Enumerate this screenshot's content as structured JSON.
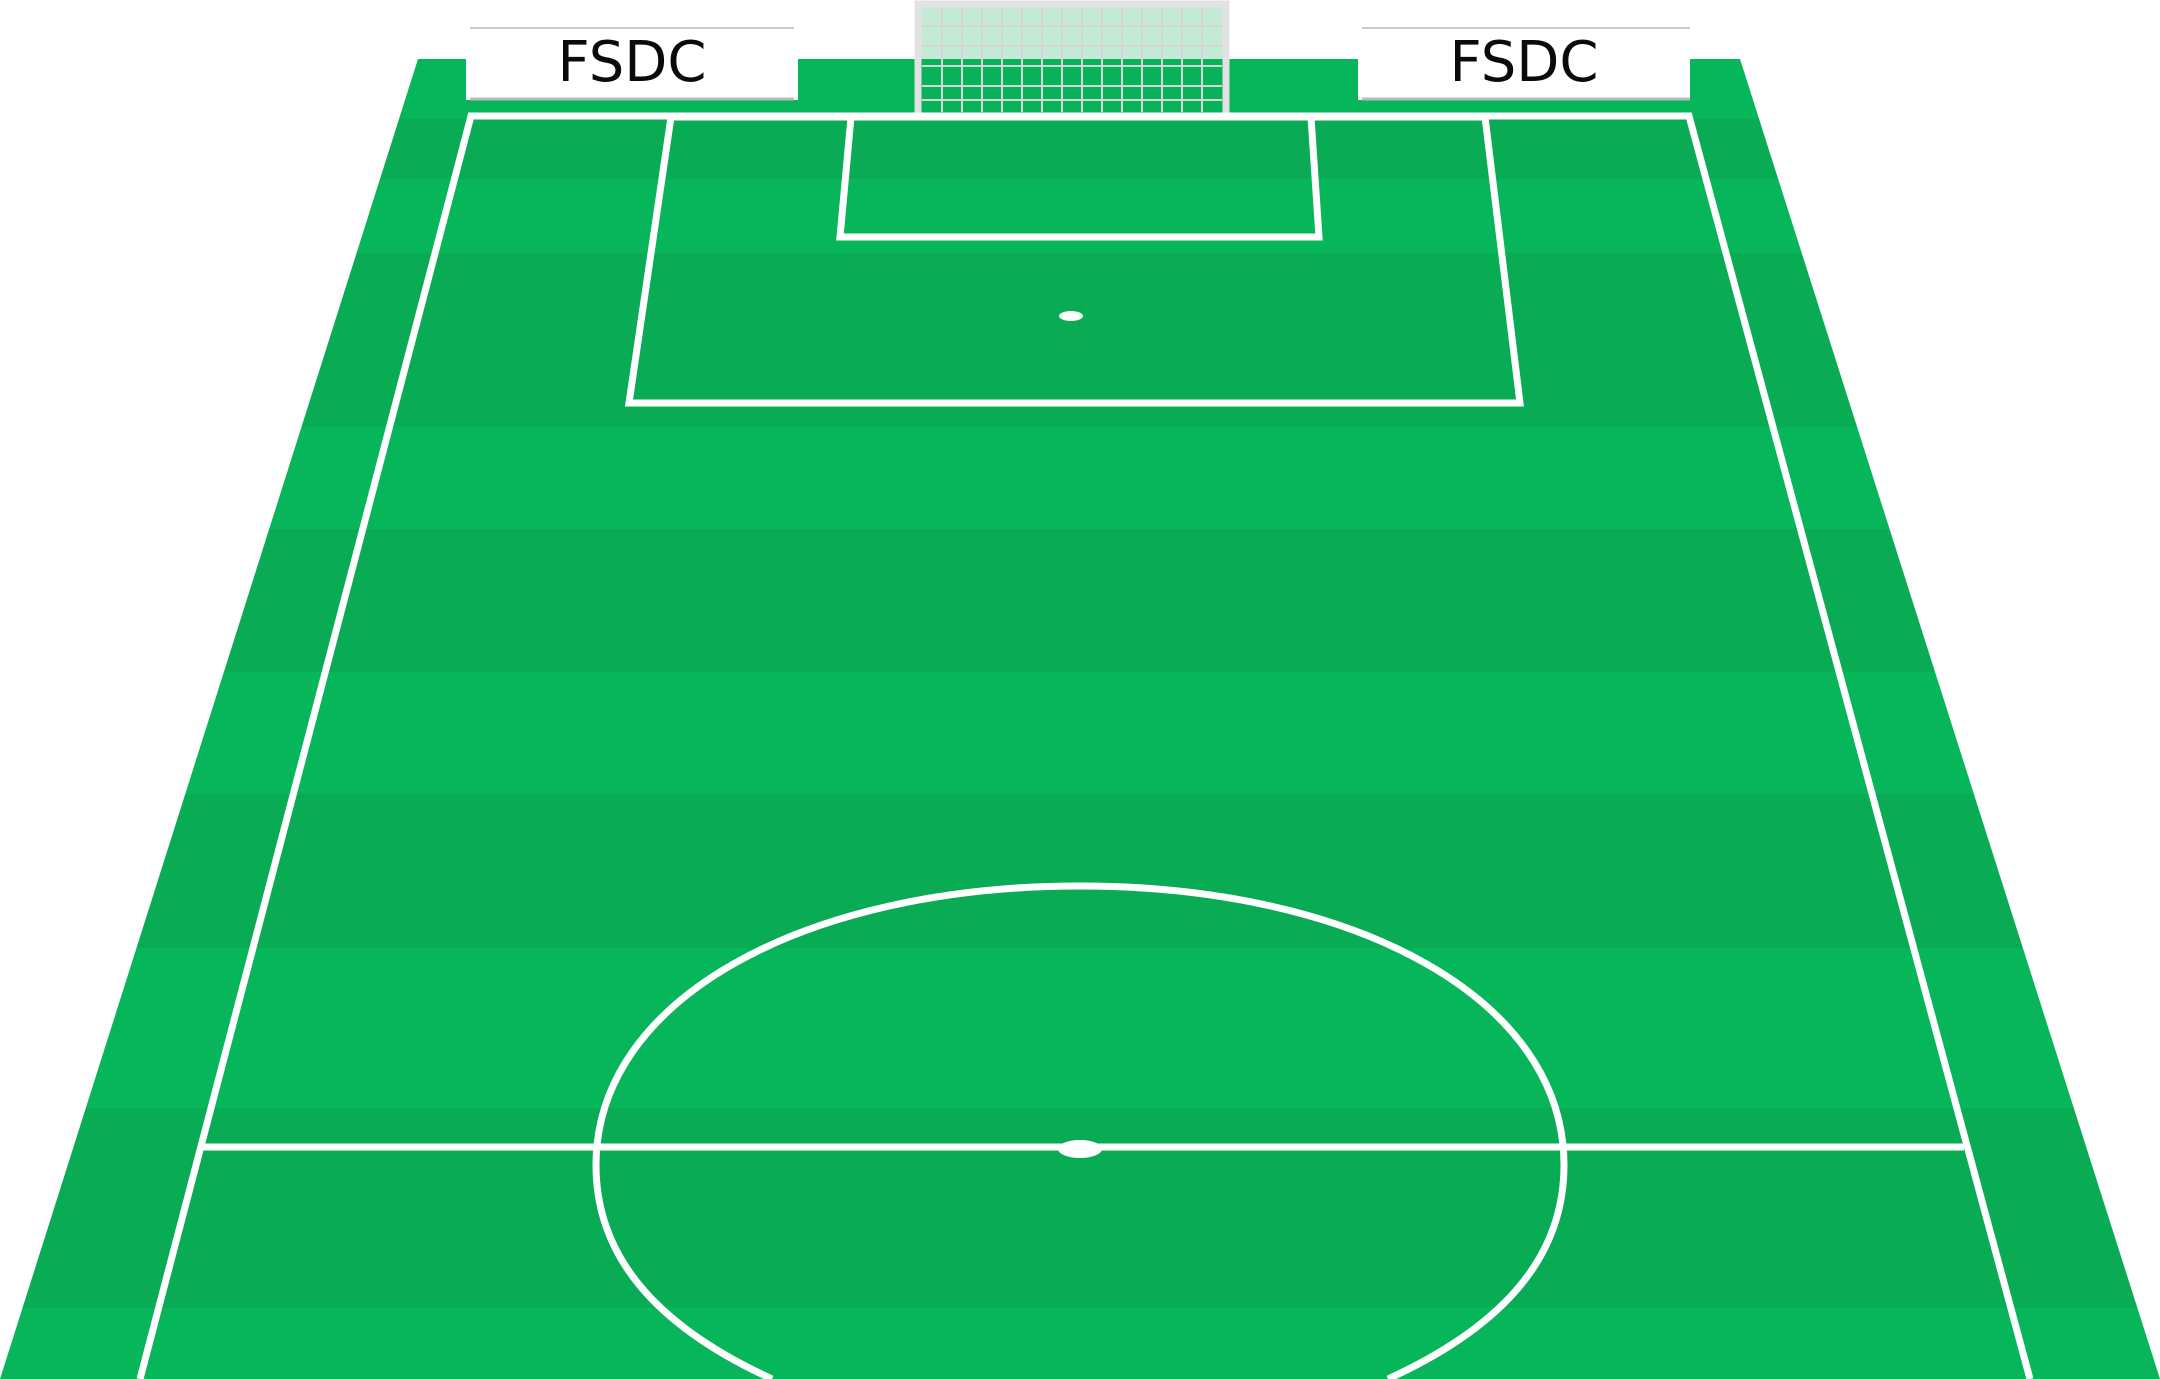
{
  "boards": {
    "left": {
      "text": "FSDC"
    },
    "right": {
      "text": "FSDC"
    }
  },
  "colors": {
    "stripe_light": "#07b55a",
    "stripe_dark": "#0aab55",
    "lines": "#ffffff",
    "net_frame": "#dddddd",
    "board_fill": "#ffffff",
    "board_text": "#0a0a0a"
  }
}
